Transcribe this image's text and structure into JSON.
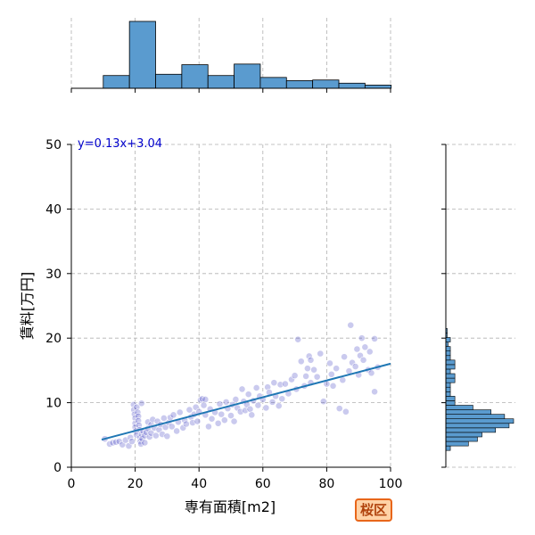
{
  "chart_data": {
    "type": "scatter",
    "xlabel": "専有面積[m2]",
    "ylabel": "賃料[万円]",
    "xlim": [
      0,
      100
    ],
    "ylim": [
      0,
      50
    ],
    "x_ticks": [
      0,
      20,
      40,
      60,
      80,
      100
    ],
    "y_ticks": [
      0,
      10,
      20,
      30,
      40,
      50
    ],
    "grid": true,
    "regression": {
      "equation": "y=0.13x+3.04",
      "slope": 0.13,
      "intercept": 3.04,
      "x_range": [
        9.5,
        100
      ]
    },
    "points": [
      [
        10.5,
        4.4
      ],
      [
        12,
        3.6
      ],
      [
        13,
        3.8
      ],
      [
        14,
        3.9
      ],
      [
        15,
        4.0
      ],
      [
        16,
        3.5
      ],
      [
        17,
        4.2
      ],
      [
        18,
        3.3
      ],
      [
        18.5,
        4.6
      ],
      [
        19,
        4.0
      ],
      [
        19.5,
        9.7
      ],
      [
        19.6,
        8.9
      ],
      [
        19.8,
        8.2
      ],
      [
        20,
        7.6
      ],
      [
        20,
        6.8
      ],
      [
        20,
        6.2
      ],
      [
        20.2,
        5.6
      ],
      [
        20.4,
        5.0
      ],
      [
        20.5,
        9.3
      ],
      [
        20.8,
        8.5
      ],
      [
        21,
        7.9
      ],
      [
        21,
        7.2
      ],
      [
        21.2,
        6.5
      ],
      [
        21.4,
        5.8
      ],
      [
        21.5,
        4.6
      ],
      [
        21.6,
        4.0
      ],
      [
        21.8,
        3.6
      ],
      [
        22,
        9.9
      ],
      [
        22,
        5.1
      ],
      [
        22.2,
        4.4
      ],
      [
        22.5,
        5.6
      ],
      [
        23,
        3.8
      ],
      [
        23,
        4.9
      ],
      [
        23.5,
        5.4
      ],
      [
        24,
        6.0
      ],
      [
        24,
        7.0
      ],
      [
        24.5,
        4.7
      ],
      [
        25,
        6.6
      ],
      [
        25,
        5.3
      ],
      [
        25.5,
        7.4
      ],
      [
        26,
        6.1
      ],
      [
        26.5,
        4.9
      ],
      [
        27,
        7.1
      ],
      [
        27.5,
        5.8
      ],
      [
        28,
        6.6
      ],
      [
        28.5,
        5.1
      ],
      [
        29,
        7.6
      ],
      [
        29.5,
        6.2
      ],
      [
        30,
        4.8
      ],
      [
        30.5,
        6.9
      ],
      [
        31,
        7.7
      ],
      [
        31.5,
        6.3
      ],
      [
        32,
        8.1
      ],
      [
        33,
        5.6
      ],
      [
        33.5,
        7.0
      ],
      [
        34,
        8.5
      ],
      [
        35,
        6.1
      ],
      [
        35.5,
        7.3
      ],
      [
        36,
        6.7
      ],
      [
        37,
        8.9
      ],
      [
        37.5,
        7.8
      ],
      [
        38,
        6.9
      ],
      [
        38.5,
        8.2
      ],
      [
        39,
        9.3
      ],
      [
        39.5,
        7.1
      ],
      [
        40,
        8.6
      ],
      [
        40.5,
        10.4
      ],
      [
        41,
        10.6
      ],
      [
        41.5,
        9.6
      ],
      [
        42,
        10.5
      ],
      [
        42,
        8.1
      ],
      [
        43,
        6.3
      ],
      [
        43.5,
        9.0
      ],
      [
        44,
        7.5
      ],
      [
        45,
        8.5
      ],
      [
        46,
        6.8
      ],
      [
        46.5,
        9.8
      ],
      [
        47,
        8.2
      ],
      [
        48,
        7.3
      ],
      [
        48.5,
        10.1
      ],
      [
        49,
        9.1
      ],
      [
        50,
        8.0
      ],
      [
        50.5,
        9.7
      ],
      [
        51,
        7.1
      ],
      [
        51.5,
        10.5
      ],
      [
        52,
        9.2
      ],
      [
        53,
        8.6
      ],
      [
        53.5,
        12.1
      ],
      [
        54,
        10.2
      ],
      [
        54.5,
        8.8
      ],
      [
        55,
        9.7
      ],
      [
        55.5,
        11.3
      ],
      [
        56,
        9.0
      ],
      [
        56.5,
        8.1
      ],
      [
        57,
        10.3
      ],
      [
        58,
        12.3
      ],
      [
        58.5,
        9.6
      ],
      [
        59,
        11.0
      ],
      [
        60,
        10.5
      ],
      [
        61,
        9.2
      ],
      [
        61.5,
        12.4
      ],
      [
        62,
        11.6
      ],
      [
        63,
        10.1
      ],
      [
        63.5,
        13.1
      ],
      [
        64,
        11.0
      ],
      [
        65,
        9.5
      ],
      [
        65.5,
        12.8
      ],
      [
        66,
        10.6
      ],
      [
        67,
        12.9
      ],
      [
        68,
        11.4
      ],
      [
        69,
        13.6
      ],
      [
        70,
        14.2
      ],
      [
        70.5,
        12.1
      ],
      [
        71,
        19.8
      ],
      [
        72,
        16.4
      ],
      [
        73,
        12.6
      ],
      [
        73.5,
        14.1
      ],
      [
        74,
        15.3
      ],
      [
        74.5,
        17.2
      ],
      [
        75,
        13.1
      ],
      [
        75,
        16.6
      ],
      [
        76,
        15.1
      ],
      [
        77,
        14.0
      ],
      [
        78,
        17.6
      ],
      [
        79,
        10.2
      ],
      [
        80,
        12.9
      ],
      [
        81,
        16.1
      ],
      [
        81.5,
        14.4
      ],
      [
        82,
        12.6
      ],
      [
        83,
        15.3
      ],
      [
        84,
        9.1
      ],
      [
        85,
        13.5
      ],
      [
        85.5,
        17.1
      ],
      [
        86,
        8.6
      ],
      [
        87,
        14.9
      ],
      [
        87.5,
        22.0
      ],
      [
        88,
        16.2
      ],
      [
        89,
        15.6
      ],
      [
        89.5,
        18.3
      ],
      [
        90,
        14.3
      ],
      [
        90.5,
        17.3
      ],
      [
        91,
        20.0
      ],
      [
        91.5,
        16.6
      ],
      [
        92,
        18.6
      ],
      [
        93,
        15.1
      ],
      [
        93.5,
        17.9
      ],
      [
        94,
        14.6
      ],
      [
        95,
        19.9
      ],
      [
        95,
        11.7
      ],
      [
        96,
        15.5
      ]
    ],
    "x_hist": {
      "edges": [
        0,
        10,
        20,
        30,
        40,
        50,
        60,
        70,
        80,
        90,
        100
      ],
      "bins": [
        {
          "x0": 10,
          "x1": 18.2,
          "count": 2
        },
        {
          "x0": 18.2,
          "x1": 26.4,
          "count": 10.5
        },
        {
          "x0": 26.4,
          "x1": 34.6,
          "count": 2.2
        },
        {
          "x0": 34.6,
          "x1": 42.8,
          "count": 3.7
        },
        {
          "x0": 42.8,
          "x1": 51.0,
          "count": 2.0
        },
        {
          "x0": 51.0,
          "x1": 59.2,
          "count": 3.8
        },
        {
          "x0": 59.2,
          "x1": 67.4,
          "count": 1.7
        },
        {
          "x0": 67.4,
          "x1": 75.6,
          "count": 1.2
        },
        {
          "x0": 75.6,
          "x1": 83.8,
          "count": 1.3
        },
        {
          "x0": 83.8,
          "x1": 92.0,
          "count": 0.8
        },
        {
          "x0": 92.0,
          "x1": 100.2,
          "count": 0.5
        }
      ]
    },
    "y_hist": {
      "bins": [
        {
          "y0": 2.6,
          "y1": 3.3,
          "count": 1
        },
        {
          "y0": 3.3,
          "y1": 4.0,
          "count": 5
        },
        {
          "y0": 4.0,
          "y1": 4.7,
          "count": 7
        },
        {
          "y0": 4.7,
          "y1": 5.4,
          "count": 8
        },
        {
          "y0": 5.4,
          "y1": 6.1,
          "count": 11
        },
        {
          "y0": 6.1,
          "y1": 6.8,
          "count": 14
        },
        {
          "y0": 6.8,
          "y1": 7.5,
          "count": 15
        },
        {
          "y0": 7.5,
          "y1": 8.2,
          "count": 13
        },
        {
          "y0": 8.2,
          "y1": 8.9,
          "count": 10
        },
        {
          "y0": 8.9,
          "y1": 9.6,
          "count": 6
        },
        {
          "y0": 9.6,
          "y1": 10.3,
          "count": 2
        },
        {
          "y0": 10.3,
          "y1": 11.0,
          "count": 2
        },
        {
          "y0": 11.0,
          "y1": 11.7,
          "count": 1
        },
        {
          "y0": 11.7,
          "y1": 12.4,
          "count": 1
        },
        {
          "y0": 12.4,
          "y1": 13.1,
          "count": 1
        },
        {
          "y0": 13.1,
          "y1": 13.8,
          "count": 2
        },
        {
          "y0": 13.8,
          "y1": 14.5,
          "count": 2
        },
        {
          "y0": 14.5,
          "y1": 15.2,
          "count": 1
        },
        {
          "y0": 15.2,
          "y1": 15.9,
          "count": 2
        },
        {
          "y0": 15.9,
          "y1": 16.6,
          "count": 2
        },
        {
          "y0": 16.6,
          "y1": 17.3,
          "count": 1
        },
        {
          "y0": 17.3,
          "y1": 18.0,
          "count": 1
        },
        {
          "y0": 18.0,
          "y1": 18.7,
          "count": 1
        },
        {
          "y0": 18.7,
          "y1": 19.4,
          "count": 0.5
        },
        {
          "y0": 19.4,
          "y1": 20.1,
          "count": 1
        },
        {
          "y0": 20.1,
          "y1": 20.8,
          "count": 0.3
        },
        {
          "y0": 20.8,
          "y1": 21.5,
          "count": 0.3
        }
      ]
    }
  },
  "badge": {
    "label": "桜区"
  },
  "colors": {
    "point": "#5050c8",
    "regression": "#1f77b4",
    "hist": "#5a9bcf",
    "equation": "#0000cc",
    "badge_fill": "#ffd2a6",
    "badge_border": "#e8661a"
  }
}
